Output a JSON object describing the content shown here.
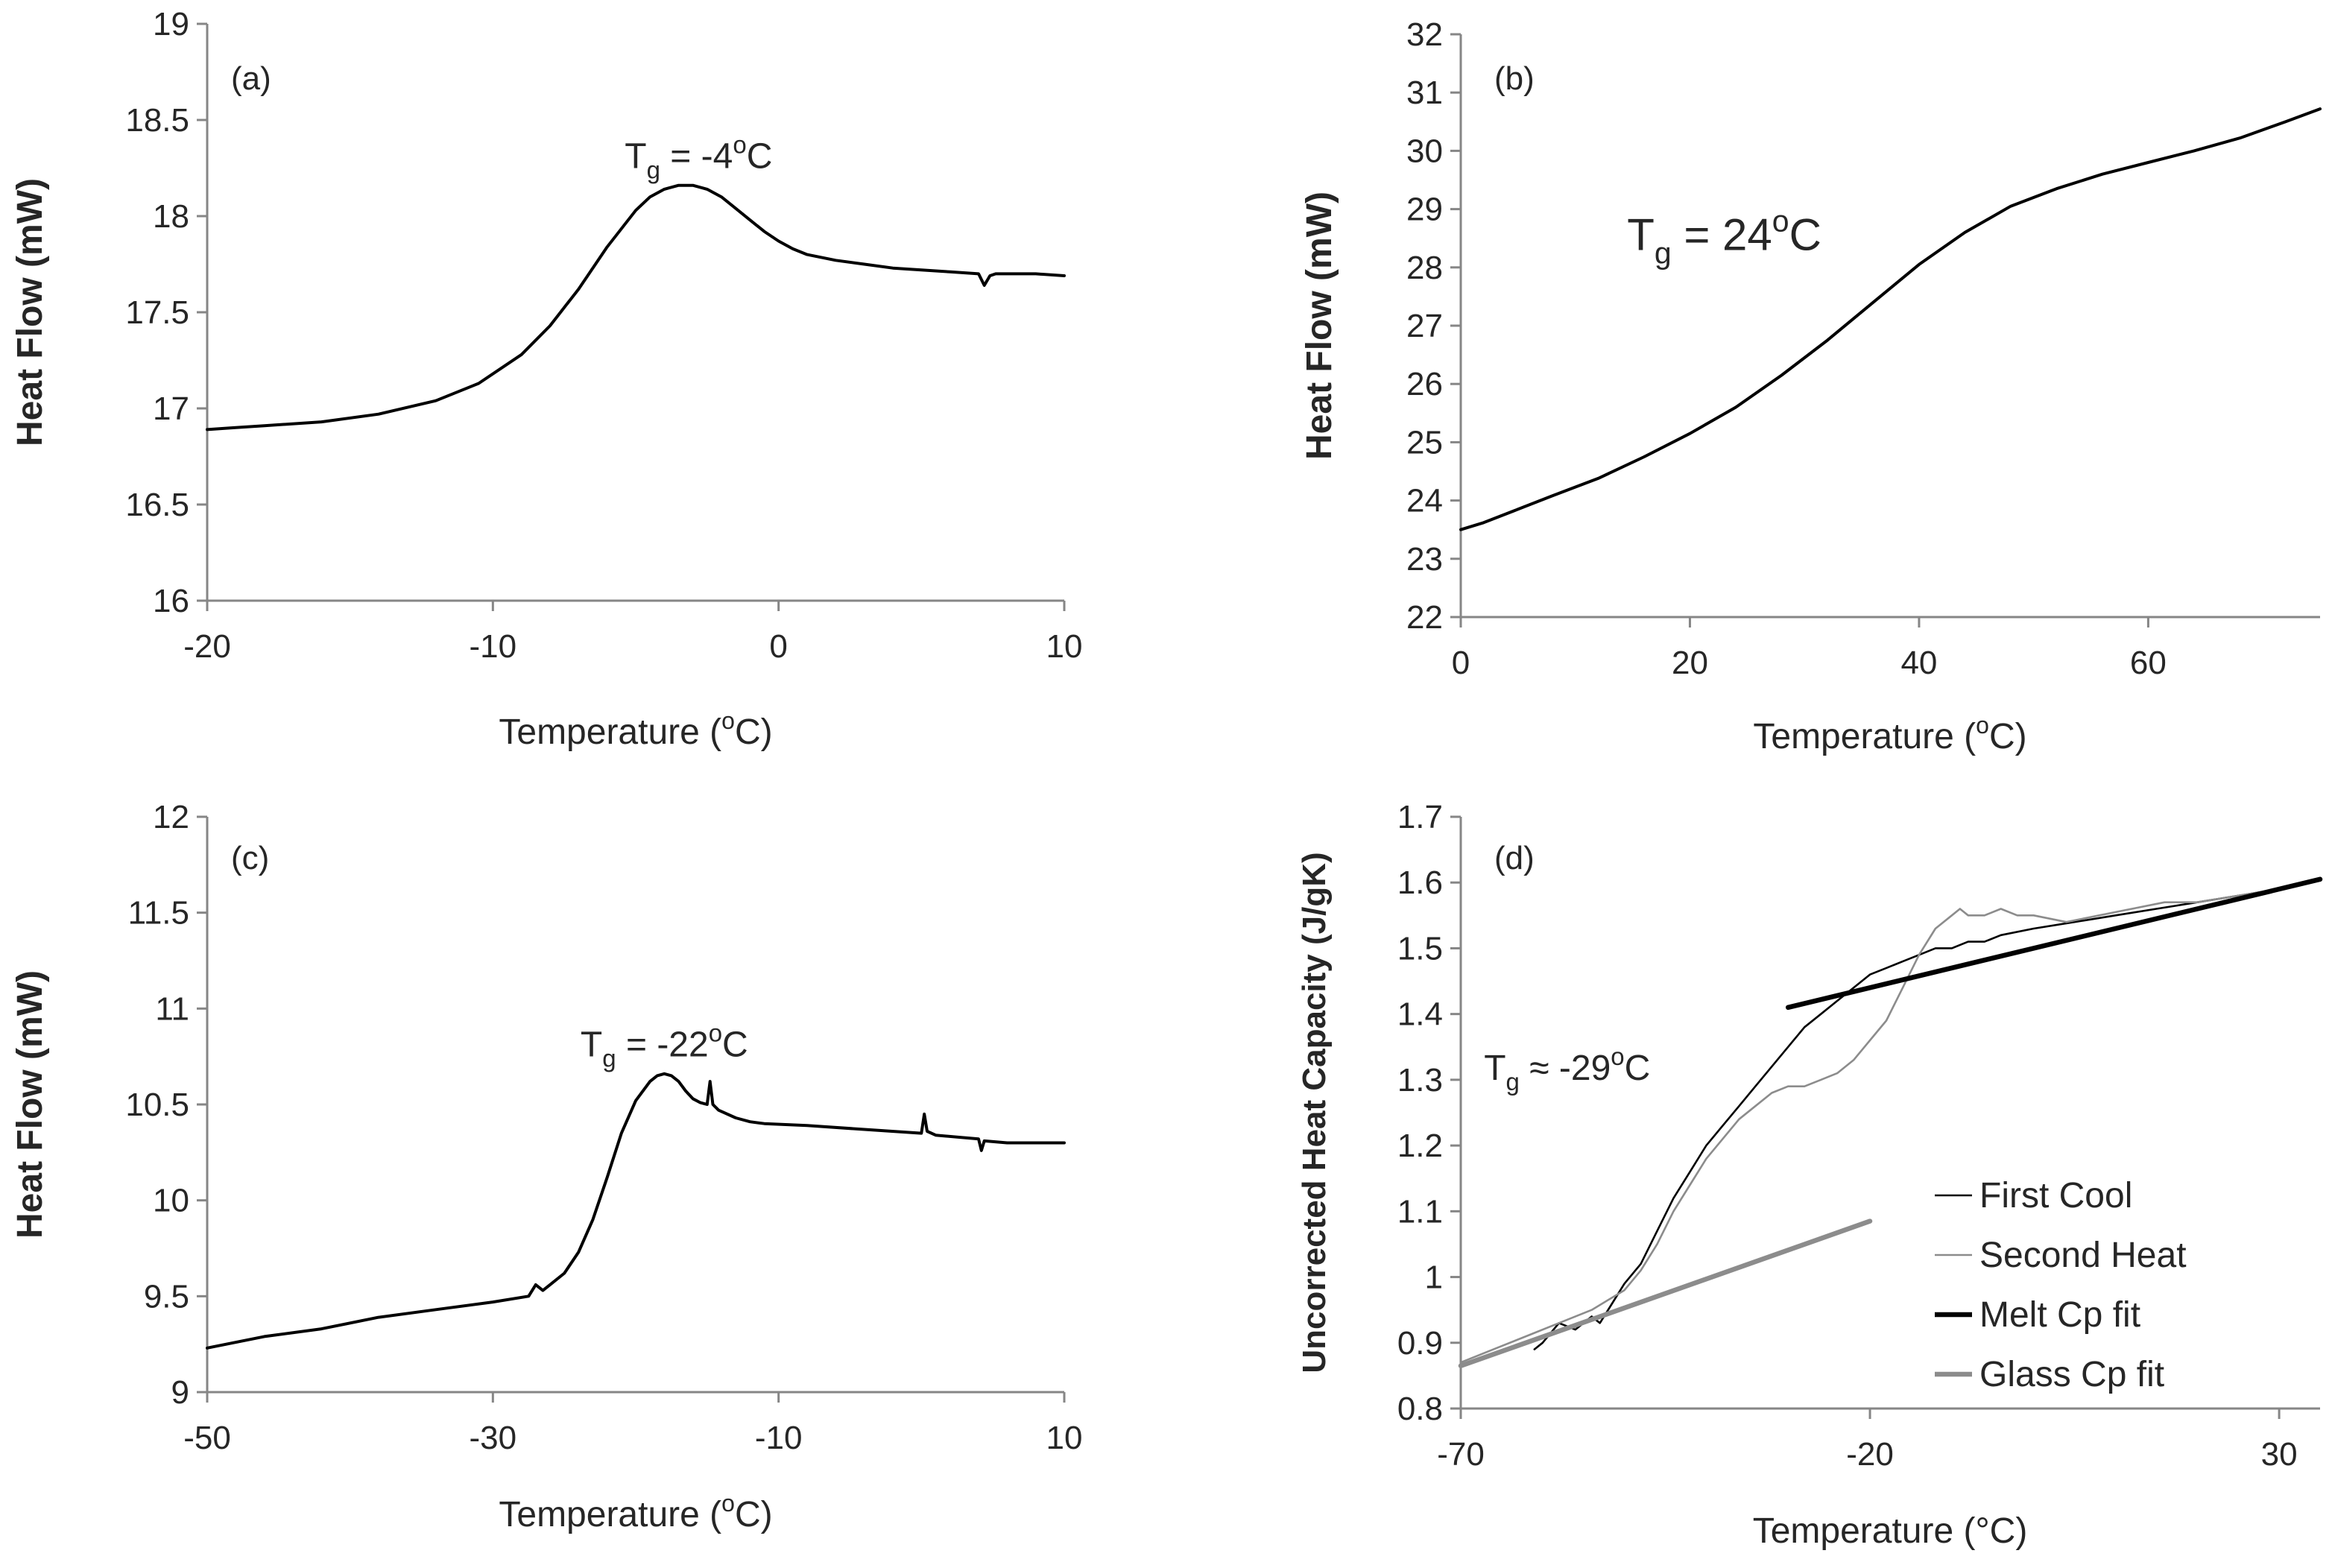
{
  "chart_data": [
    {
      "type": "line",
      "panel": "(a)",
      "xlabel": "Temperature  (",
      "xlabel_sup": "o",
      "xlabel_end": "C)",
      "ylabel": "Heat Flow (mW)",
      "xlim": [
        -20,
        10
      ],
      "ylim": [
        16,
        19
      ],
      "xticks": [
        -20,
        -10,
        0,
        10
      ],
      "yticks": [
        16,
        16.5,
        17,
        17.5,
        18,
        18.5,
        19
      ],
      "annotation": {
        "main": "T",
        "sub": "g",
        "text": " = -4",
        "sup": "o",
        "end": "C",
        "at": [
          -2.8,
          18.25
        ]
      },
      "series": [
        {
          "name": "Heat flow",
          "color": "#000000",
          "x": [
            -20,
            -19,
            -18,
            -16,
            -14,
            -12,
            -10.5,
            -9,
            -8,
            -7,
            -6,
            -5,
            -4.5,
            -4,
            -3.5,
            -3,
            -2.5,
            -2,
            -1.5,
            -1,
            -0.5,
            0,
            0.5,
            1,
            2,
            3,
            4,
            5,
            6,
            7,
            7.2,
            7.4,
            7.6,
            8,
            9,
            10
          ],
          "y": [
            16.89,
            16.9,
            16.91,
            16.93,
            16.97,
            17.04,
            17.13,
            17.28,
            17.43,
            17.62,
            17.84,
            18.03,
            18.1,
            18.14,
            18.16,
            18.16,
            18.14,
            18.1,
            18.04,
            17.98,
            17.92,
            17.87,
            17.83,
            17.8,
            17.77,
            17.75,
            17.73,
            17.72,
            17.71,
            17.7,
            17.64,
            17.69,
            17.7,
            17.7,
            17.7,
            17.69
          ]
        }
      ]
    },
    {
      "type": "line",
      "panel": "(b)",
      "xlabel": "Temperature  (",
      "xlabel_sup": "o",
      "xlabel_end": "C)",
      "ylabel": "Heat Flow (mW)",
      "xlim": [
        0,
        75
      ],
      "ylim": [
        22,
        32
      ],
      "xticks": [
        0,
        20,
        40,
        60
      ],
      "yticks": [
        22,
        23,
        24,
        25,
        26,
        27,
        28,
        29,
        30,
        31,
        32
      ],
      "annotation": {
        "main": "T",
        "sub": "g",
        "text": " = 24",
        "sup": "o",
        "end": "C",
        "at": [
          23,
          28.3
        ]
      },
      "series": [
        {
          "name": "Heat flow",
          "color": "#000000",
          "x": [
            0,
            2,
            5,
            8,
            12,
            16,
            20,
            24,
            28,
            32,
            36,
            40,
            44,
            48,
            52,
            56,
            60,
            64,
            68,
            72,
            75
          ],
          "y": [
            23.5,
            23.62,
            23.85,
            24.08,
            24.38,
            24.75,
            25.15,
            25.6,
            26.15,
            26.75,
            27.4,
            28.05,
            28.6,
            29.05,
            29.35,
            29.6,
            29.8,
            30.0,
            30.22,
            30.5,
            30.72
          ]
        }
      ]
    },
    {
      "type": "line",
      "panel": "(c)",
      "xlabel": "Temperature  (",
      "xlabel_sup": "o",
      "xlabel_end": "C)",
      "ylabel": "Heat Flow (mW)",
      "xlim": [
        -50,
        10
      ],
      "ylim": [
        9,
        12
      ],
      "xticks": [
        -50,
        -30,
        -10,
        10
      ],
      "yticks": [
        9,
        9.5,
        10,
        10.5,
        11,
        11.5,
        12
      ],
      "annotation": {
        "main": "T",
        "sub": "g",
        "text": " = -22",
        "sup": "o",
        "end": "C",
        "at": [
          -18,
          10.75
        ]
      },
      "series": [
        {
          "name": "Heat flow",
          "color": "#000000",
          "x": [
            -50,
            -46,
            -42,
            -38,
            -34,
            -30,
            -27.5,
            -27,
            -26.5,
            -26,
            -25,
            -24,
            -23,
            -22,
            -21,
            -20,
            -19,
            -18.5,
            -18,
            -17.5,
            -17,
            -16.5,
            -16,
            -15.5,
            -15,
            -14.8,
            -14.6,
            -14.2,
            -13,
            -12,
            -11,
            -8,
            -4,
            0,
            0.2,
            0.4,
            1,
            4,
            4.2,
            4.4,
            6,
            8,
            10
          ],
          "y": [
            9.23,
            9.29,
            9.33,
            9.39,
            9.43,
            9.47,
            9.5,
            9.56,
            9.53,
            9.56,
            9.62,
            9.73,
            9.9,
            10.12,
            10.35,
            10.52,
            10.62,
            10.65,
            10.66,
            10.65,
            10.62,
            10.57,
            10.53,
            10.51,
            10.5,
            10.62,
            10.5,
            10.47,
            10.43,
            10.41,
            10.4,
            10.39,
            10.37,
            10.35,
            10.45,
            10.36,
            10.34,
            10.32,
            10.26,
            10.31,
            10.3,
            10.3,
            10.3
          ]
        }
      ]
    },
    {
      "type": "line",
      "panel": "(d)",
      "xlabel": "Temperature  (°C)",
      "ylabel": "Uncorrected Heat Capacity (J/gK)",
      "xlim": [
        -70,
        35
      ],
      "ylim": [
        0.8,
        1.7
      ],
      "xticks": [
        -70,
        -20,
        30
      ],
      "yticks": [
        0.8,
        0.9,
        1,
        1.1,
        1.2,
        1.3,
        1.4,
        1.5,
        1.6,
        1.7
      ],
      "annotation": {
        "main": "T",
        "sub": "g",
        "text": " ≈ -29",
        "sup": "o",
        "end": "C",
        "at": [
          -57,
          1.3
        ]
      },
      "legend_position": "bottom-right",
      "series": [
        {
          "name": "First Cool",
          "color": "#000000",
          "width": 2.6,
          "x": [
            -61,
            -60,
            -58,
            -56,
            -54,
            -53,
            -52,
            -50,
            -48,
            -46,
            -44,
            -42,
            -40,
            -38,
            -36,
            -34,
            -32,
            -30,
            -28,
            -26,
            -24,
            -22,
            -20,
            -18,
            -16,
            -14,
            -12,
            -10,
            -8,
            -6,
            -4,
            0,
            5,
            10,
            15,
            20,
            25,
            30,
            33
          ],
          "y": [
            0.89,
            0.9,
            0.93,
            0.92,
            0.94,
            0.93,
            0.95,
            0.99,
            1.02,
            1.07,
            1.12,
            1.16,
            1.2,
            1.23,
            1.26,
            1.29,
            1.32,
            1.35,
            1.38,
            1.4,
            1.42,
            1.44,
            1.46,
            1.47,
            1.48,
            1.49,
            1.5,
            1.5,
            1.51,
            1.51,
            1.52,
            1.53,
            1.54,
            1.55,
            1.56,
            1.57,
            1.58,
            1.59,
            1.6
          ]
        },
        {
          "name": "Second Heat",
          "color": "#8c8c8c",
          "width": 2.6,
          "x": [
            -70,
            -66,
            -62,
            -58,
            -54,
            -50,
            -48,
            -46,
            -44,
            -42,
            -40,
            -38,
            -36,
            -34,
            -32,
            -30,
            -28,
            -26,
            -24,
            -22,
            -20,
            -18,
            -16,
            -14,
            -12,
            -10,
            -9,
            -8,
            -6,
            -4,
            -2,
            0,
            4,
            8,
            12,
            16,
            20,
            25,
            30,
            33
          ],
          "y": [
            0.87,
            0.89,
            0.91,
            0.93,
            0.95,
            0.98,
            1.01,
            1.05,
            1.1,
            1.14,
            1.18,
            1.21,
            1.24,
            1.26,
            1.28,
            1.29,
            1.29,
            1.3,
            1.31,
            1.33,
            1.36,
            1.39,
            1.44,
            1.49,
            1.53,
            1.55,
            1.56,
            1.55,
            1.55,
            1.56,
            1.55,
            1.55,
            1.54,
            1.55,
            1.56,
            1.57,
            1.57,
            1.58,
            1.59,
            1.6
          ]
        },
        {
          "name": "Melt Cp fit",
          "color": "#000000",
          "width": 6.5,
          "x": [
            -30,
            35
          ],
          "y": [
            1.41,
            1.605
          ]
        },
        {
          "name": "Glass Cp fit",
          "color": "#8c8c8c",
          "width": 6.5,
          "x": [
            -70,
            -20
          ],
          "y": [
            0.865,
            1.085
          ]
        }
      ]
    }
  ]
}
